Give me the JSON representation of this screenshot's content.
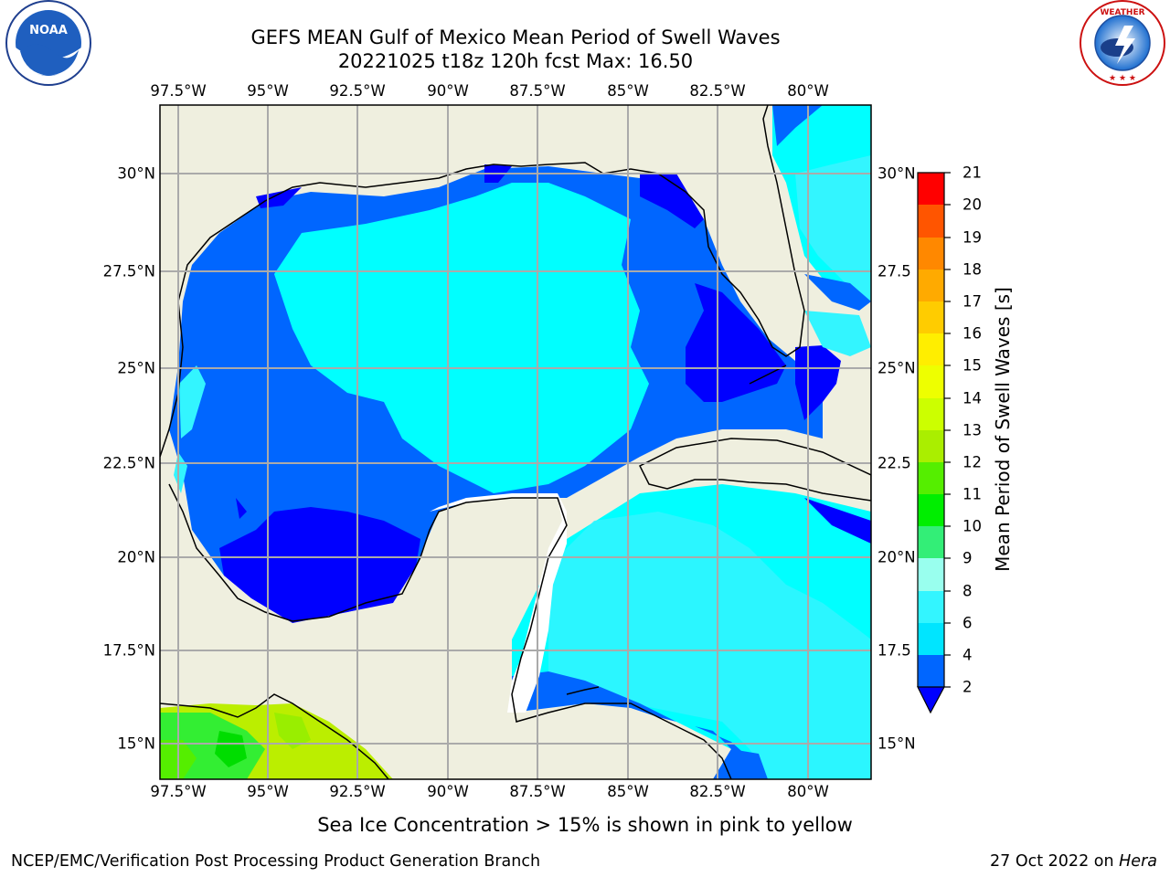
{
  "title_line1": "GEFS MEAN Gulf of Mexico Mean Period of Swell Waves",
  "title_line2": "20221025 t18z 120h fcst   Max: 16.50",
  "lon_labels": [
    "97.5°W",
    "95°W",
    "92.5°W",
    "90°W",
    "87.5°W",
    "85°W",
    "82.5°W",
    "80°W"
  ],
  "lat_labels_left": [
    "30°N",
    "27.5°N",
    "25°N",
    "22.5°N",
    "20°N",
    "17.5°N",
    "15°N"
  ],
  "lat_labels_right": [
    "30°N",
    "27.5",
    "25°N",
    "22.5",
    "20°N",
    "17.5",
    "15°N"
  ],
  "colorbar": {
    "label": "Mean Period of Swell Waves [s]",
    "ticks": [
      "2",
      "4",
      "6",
      "8",
      "9",
      "10",
      "11",
      "12",
      "13",
      "14",
      "15",
      "16",
      "17",
      "18",
      "19",
      "20",
      "21"
    ],
    "colors": [
      "#0066ff",
      "#00e5ff",
      "#33f5ff",
      "#66ffff",
      "#99ffee",
      "#33ee77",
      "#00ee00",
      "#55ee00",
      "#aaee00",
      "#ccff00",
      "#eeff00",
      "#ffee00",
      "#ffcc00",
      "#ffaa00",
      "#ff8800",
      "#ff5500",
      "#ff2200",
      "#ff0000"
    ],
    "under_color": "#0000ff"
  },
  "palette": {
    "land": "#efefdf",
    "deep_blue": "#0000ff",
    "mid_blue": "#0066ff",
    "cyan": "#00ffff",
    "light_cyan": "#33f5ff",
    "green": "#33ee33",
    "yellow_green": "#bbee00"
  },
  "note": "Sea Ice Concentration > 15% is shown in pink to yellow",
  "footer_left": "NCEP/EMC/Verification Post Processing Product Generation Branch",
  "footer_right_prefix": "27 Oct 2022 on ",
  "footer_right_host": "Hera",
  "logos": {
    "left": "NOAA",
    "right": "NATIONAL WEATHER SERVICE"
  }
}
